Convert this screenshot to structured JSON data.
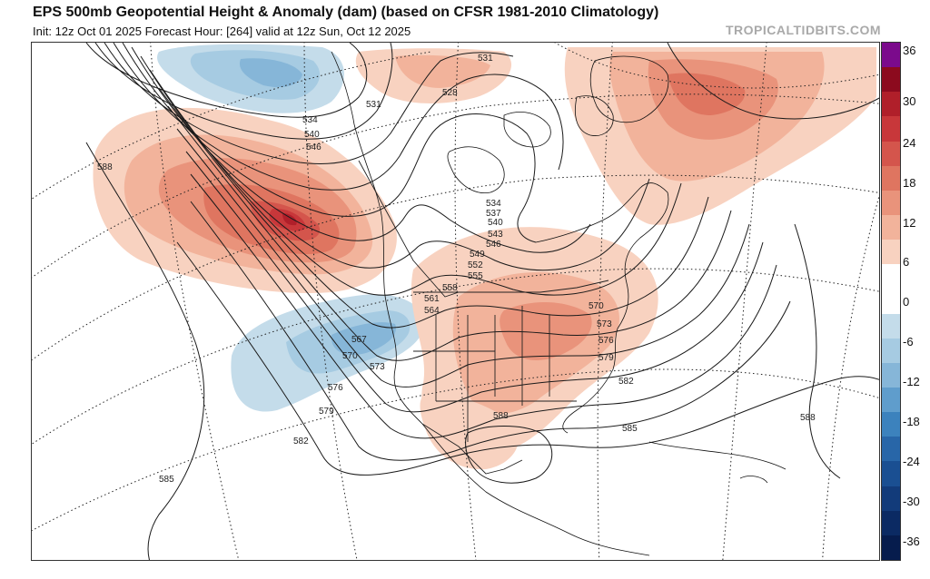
{
  "header": {
    "title": "EPS 500mb Geopotential Height & Anomaly (dam) (based on CFSR 1981-2010 Climatology)",
    "subtitle": "Init: 12z Oct 01 2025   Forecast Hour: [264]   valid at 12z Sun, Oct 12 2025",
    "brand": "TROPICALTIDBITS.COM"
  },
  "colorbar": {
    "labels": [
      "36",
      "30",
      "24",
      "18",
      "12",
      "6",
      "0",
      "-6",
      "-12",
      "-18",
      "-24",
      "-30",
      "-36"
    ],
    "colors_top_to_bottom": [
      "#7b0a8c",
      "#8c0a1e",
      "#b01f2a",
      "#c8373a",
      "#d4554c",
      "#df7560",
      "#e9937b",
      "#f2b39b",
      "#f8d2c0",
      "#ffffff",
      "#ffffff",
      "#c4dcea",
      "#a6cbe2",
      "#86b6d8",
      "#5f9dcc",
      "#3c82bd",
      "#2866a8",
      "#1a4f92",
      "#123b7a",
      "#0b2a63",
      "#061c4d"
    ]
  },
  "contour_labels": [
    {
      "text": "531"
    },
    {
      "text": "531"
    },
    {
      "text": "528"
    },
    {
      "text": "534"
    },
    {
      "text": "540"
    },
    {
      "text": "546"
    },
    {
      "text": "588"
    },
    {
      "text": "534"
    },
    {
      "text": "537"
    },
    {
      "text": "540"
    },
    {
      "text": "543"
    },
    {
      "text": "546"
    },
    {
      "text": "549"
    },
    {
      "text": "552"
    },
    {
      "text": "555"
    },
    {
      "text": "558"
    },
    {
      "text": "561"
    },
    {
      "text": "564"
    },
    {
      "text": "567"
    },
    {
      "text": "570"
    },
    {
      "text": "573"
    },
    {
      "text": "576"
    },
    {
      "text": "579"
    },
    {
      "text": "582"
    },
    {
      "text": "585"
    },
    {
      "text": "588"
    },
    {
      "text": "570"
    },
    {
      "text": "573"
    },
    {
      "text": "576"
    },
    {
      "text": "579"
    },
    {
      "text": "582"
    },
    {
      "text": "585"
    },
    {
      "text": "588"
    }
  ],
  "anomaly_features": [
    {
      "name": "positive-anomaly-northeast-pacific",
      "peak_dam": 30
    },
    {
      "name": "negative-anomaly-alaska",
      "peak_dam": -12
    },
    {
      "name": "negative-anomaly-west-coast",
      "peak_dam": -12
    },
    {
      "name": "positive-anomaly-central-us",
      "peak_dam": 12
    },
    {
      "name": "positive-anomaly-greenland",
      "peak_dam": 18
    }
  ]
}
